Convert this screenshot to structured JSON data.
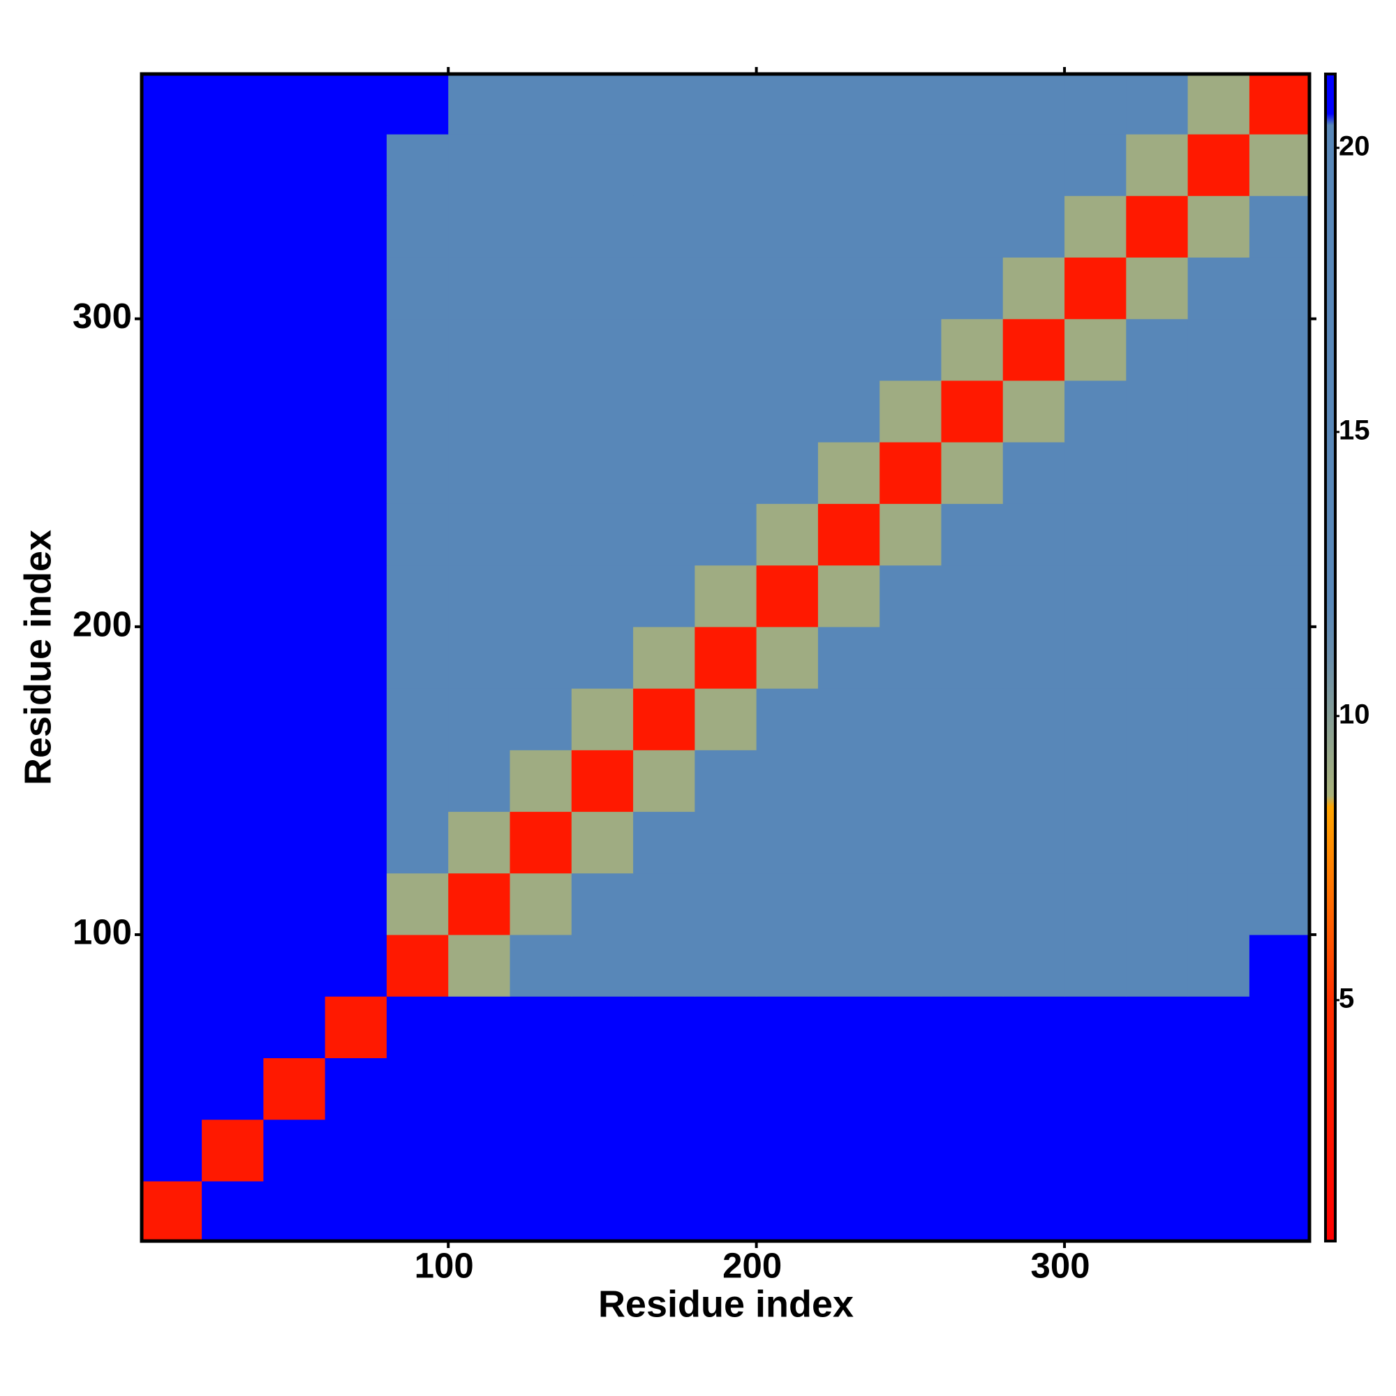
{
  "chart_data": {
    "type": "heatmap",
    "xlabel": "Residue index",
    "ylabel": "Residue index",
    "xlim": [
      0.5,
      379.5
    ],
    "ylim": [
      0.5,
      379.5
    ],
    "xticks": [
      100,
      200,
      300
    ],
    "yticks": [
      100,
      200,
      300
    ],
    "bin_edges": [
      0.5,
      20,
      40,
      60,
      80,
      100,
      120,
      140,
      160,
      180,
      200,
      220,
      240,
      260,
      280,
      300,
      320,
      340,
      360,
      379.5
    ],
    "z": [
      [
        3,
        21,
        21,
        21,
        21,
        21,
        21,
        21,
        21,
        21,
        21,
        21,
        21,
        21,
        21,
        21,
        21,
        21,
        21
      ],
      [
        21,
        3,
        21,
        21,
        21,
        21,
        21,
        21,
        21,
        21,
        21,
        21,
        21,
        21,
        21,
        21,
        21,
        21,
        21
      ],
      [
        21,
        21,
        3,
        21,
        21,
        21,
        21,
        21,
        21,
        21,
        21,
        21,
        21,
        21,
        21,
        21,
        21,
        21,
        21
      ],
      [
        21,
        21,
        21,
        3,
        21,
        21,
        21,
        21,
        21,
        21,
        21,
        21,
        21,
        21,
        21,
        21,
        21,
        21,
        21
      ],
      [
        21,
        21,
        21,
        21,
        3,
        9,
        17,
        17,
        17,
        17,
        17,
        17,
        17,
        17,
        17,
        17,
        17,
        17,
        21
      ],
      [
        21,
        21,
        21,
        21,
        9,
        3,
        9,
        13,
        17,
        17,
        17,
        17,
        17,
        17,
        17,
        17,
        17,
        17,
        17
      ],
      [
        21,
        21,
        21,
        21,
        17,
        9,
        3,
        9,
        13,
        17,
        17,
        17,
        17,
        17,
        17,
        17,
        17,
        17,
        17
      ],
      [
        21,
        21,
        21,
        21,
        17,
        13,
        9,
        3,
        9,
        13,
        17,
        17,
        17,
        17,
        17,
        17,
        17,
        17,
        17
      ],
      [
        21,
        21,
        21,
        21,
        17,
        17,
        13,
        9,
        3,
        9,
        13,
        17,
        17,
        17,
        17,
        17,
        17,
        17,
        17
      ],
      [
        21,
        21,
        21,
        21,
        17,
        17,
        17,
        13,
        9,
        3,
        9,
        13,
        17,
        17,
        17,
        17,
        17,
        17,
        17
      ],
      [
        21,
        21,
        21,
        21,
        17,
        17,
        17,
        17,
        13,
        9,
        3,
        9,
        13,
        17,
        17,
        17,
        17,
        17,
        17
      ],
      [
        21,
        21,
        21,
        21,
        17,
        17,
        17,
        17,
        17,
        13,
        9,
        3,
        9,
        13,
        17,
        17,
        17,
        17,
        17
      ],
      [
        21,
        21,
        21,
        21,
        17,
        17,
        17,
        17,
        17,
        17,
        13,
        9,
        3,
        9,
        13,
        17,
        17,
        17,
        17
      ],
      [
        21,
        21,
        21,
        21,
        17,
        17,
        17,
        17,
        17,
        17,
        17,
        13,
        9,
        3,
        9,
        13,
        17,
        17,
        17
      ],
      [
        21,
        21,
        21,
        21,
        17,
        17,
        17,
        17,
        17,
        17,
        17,
        17,
        13,
        9,
        3,
        9,
        13,
        17,
        17
      ],
      [
        21,
        21,
        21,
        21,
        17,
        17,
        17,
        17,
        17,
        17,
        17,
        17,
        17,
        13,
        9,
        3,
        9,
        13,
        17
      ],
      [
        21,
        21,
        21,
        21,
        17,
        17,
        17,
        17,
        17,
        17,
        17,
        17,
        17,
        17,
        13,
        9,
        3,
        9,
        13
      ],
      [
        21,
        21,
        21,
        21,
        17,
        17,
        17,
        17,
        17,
        17,
        17,
        17,
        17,
        17,
        17,
        13,
        9,
        3,
        9
      ],
      [
        21,
        21,
        21,
        21,
        21,
        17,
        17,
        17,
        17,
        17,
        17,
        17,
        17,
        17,
        17,
        17,
        13,
        9,
        3
      ]
    ],
    "zlim": [
      0.76,
      21.3
    ],
    "zticks": [
      5,
      10,
      15,
      20
    ],
    "colorscale": [
      [
        0.76,
        "#ff0000"
      ],
      [
        5,
        "#ff3000"
      ],
      [
        8.4,
        "#ffa500"
      ],
      [
        8.6,
        "#a9b27a"
      ],
      [
        11,
        "#6a8eaa"
      ],
      [
        12,
        "#5887b8"
      ],
      [
        20.4,
        "#5887b8"
      ],
      [
        20.6,
        "#0000ff"
      ],
      [
        21.3,
        "#0000ff"
      ]
    ]
  }
}
